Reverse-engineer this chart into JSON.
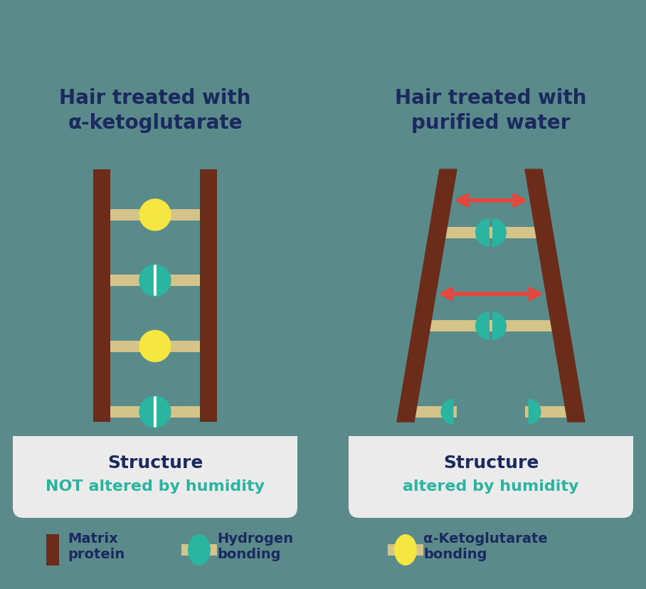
{
  "bg_color": "#5b8a8b",
  "panel_bg": "#5b8a8b",
  "white_panel_bg": "#f0f0f0",
  "dark_navy": "#1a2a5e",
  "teal_color": "#2ab5a0",
  "yellow_color": "#f5e642",
  "brown_color": "#6b2c1a",
  "tan_color": "#d4c48a",
  "red_arrow_color": "#e8453c",
  "title1": "Hair treated with\nα-ketoglutarate",
  "title2": "Hair treated with\npurified water",
  "label1_line1": "Structure",
  "label1_line2": "NOT altered by humidity",
  "label2_line1": "Structure",
  "label2_line2": "altered by humidity",
  "legend_matrix": "Matrix\nprotein",
  "legend_hydrogen": "Hydrogen\nbonding",
  "legend_alpha": "α-Ketoglutarate\nbonding"
}
